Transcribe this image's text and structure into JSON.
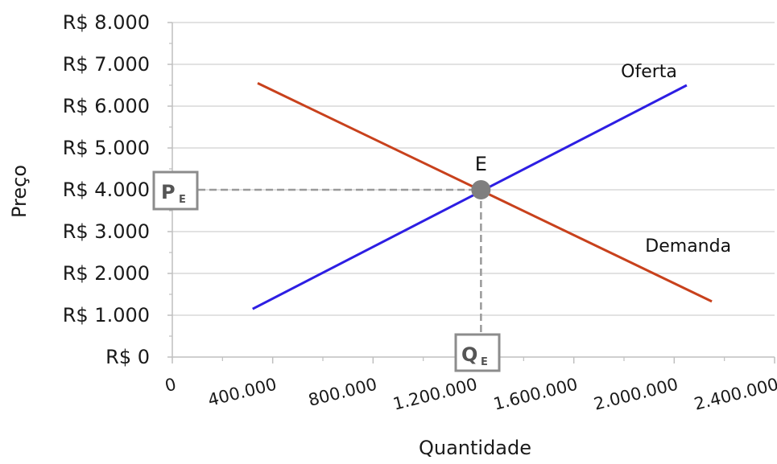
{
  "chart_data": {
    "type": "line",
    "xlabel": "Quantidade",
    "ylabel": "Preço",
    "xlim": [
      0,
      2400000
    ],
    "ylim": [
      0,
      8000
    ],
    "x_ticks": [
      0,
      400000,
      800000,
      1200000,
      1600000,
      2000000,
      2400000
    ],
    "x_tick_labels": [
      "0",
      "400.000",
      "800.000",
      "1.200.000",
      "1.600.000",
      "2.000.000",
      "2.400.000"
    ],
    "y_ticks": [
      0,
      1000,
      2000,
      3000,
      4000,
      5000,
      6000,
      7000,
      8000
    ],
    "y_tick_labels": [
      "R$ 0",
      "R$ 1.000",
      "R$ 2.000",
      "R$ 3.000",
      "R$ 4.000",
      "R$ 5.000",
      "R$ 6.000",
      "R$ 7.000",
      "R$ 8.000"
    ],
    "grid": true,
    "series": [
      {
        "name": "Oferta",
        "color": "#2d1ee3",
        "points": [
          [
            320000,
            1150
          ],
          [
            2050000,
            6500
          ]
        ]
      },
      {
        "name": "Demanda",
        "color": "#c8411c",
        "points": [
          [
            340000,
            6550
          ],
          [
            2150000,
            1330
          ]
        ]
      }
    ],
    "equilibrium": {
      "label": "E",
      "x": 1230000,
      "y": 4000,
      "price_marker": {
        "main": "P",
        "sub": "E"
      },
      "quantity_marker": {
        "main": "Q",
        "sub": "E"
      },
      "point_color": "#7f7f7f"
    }
  }
}
